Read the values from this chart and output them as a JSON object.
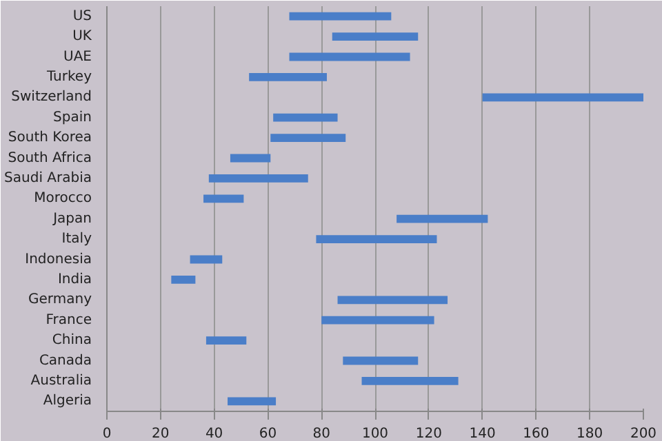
{
  "chart_data": {
    "type": "bar",
    "orientation": "horizontal",
    "categories": [
      "US",
      "UK",
      "UAE",
      "Turkey",
      "Switzerland",
      "Spain",
      "South Korea",
      "South Africa",
      "Saudi Arabia",
      "Morocco",
      "Japan",
      "Italy",
      "Indonesia",
      "India",
      "Germany",
      "France",
      "China",
      "Canada",
      "Australia",
      "Algeria"
    ],
    "base": [
      68,
      84,
      68,
      53,
      140,
      62,
      61,
      46,
      38,
      36,
      108,
      78,
      31,
      24,
      86,
      80,
      37,
      88,
      95,
      45
    ],
    "values": [
      38,
      32,
      45,
      29,
      60,
      24,
      28,
      15,
      37,
      15,
      34,
      45,
      12,
      9,
      41,
      42,
      15,
      28,
      36,
      18
    ],
    "color": "#4a7ec8",
    "xlim": [
      0,
      200
    ],
    "xticks": [
      0,
      20,
      40,
      60,
      80,
      100,
      120,
      140,
      160,
      180,
      200
    ],
    "grid": "x"
  }
}
